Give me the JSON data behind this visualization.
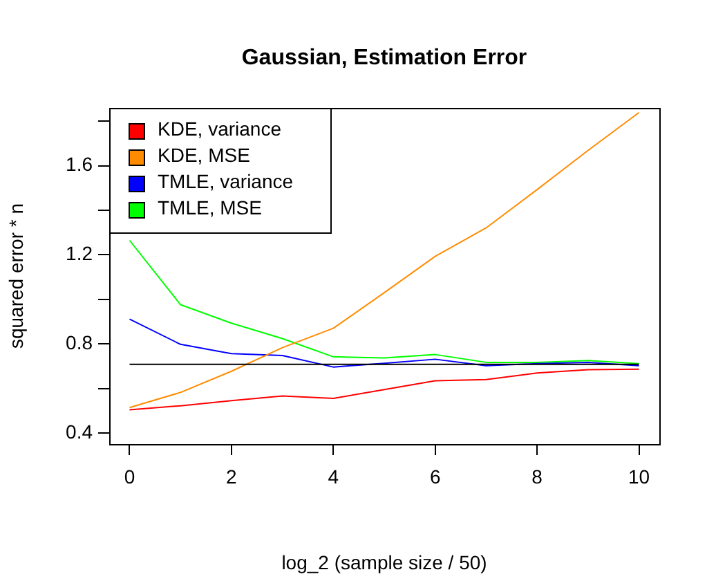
{
  "chart_data": {
    "type": "line",
    "title": "Gaussian, Estimation Error",
    "xlabel": "log_2 (sample size / 50)",
    "ylabel": "squared error * n",
    "x": [
      0,
      1,
      2,
      3,
      4,
      5,
      6,
      7,
      8,
      9,
      10
    ],
    "series": [
      {
        "name": "KDE, variance",
        "color": "#ff0000",
        "values": [
          0.504,
          0.522,
          0.545,
          0.566,
          0.555,
          0.595,
          0.634,
          0.64,
          0.669,
          0.684,
          0.686
        ]
      },
      {
        "name": "KDE, MSE",
        "color": "#ff8c00",
        "values": [
          0.514,
          0.582,
          0.677,
          0.783,
          0.87,
          1.03,
          1.193,
          1.321,
          1.493,
          1.669,
          1.839
        ]
      },
      {
        "name": "TMLE, variance",
        "color": "#0000ff",
        "values": [
          0.911,
          0.798,
          0.756,
          0.748,
          0.696,
          0.713,
          0.731,
          0.702,
          0.711,
          0.717,
          0.702
        ]
      },
      {
        "name": "TMLE, MSE",
        "color": "#00ff00",
        "values": [
          1.265,
          0.976,
          0.893,
          0.824,
          0.742,
          0.737,
          0.752,
          0.717,
          0.717,
          0.725,
          0.711
        ]
      }
    ],
    "ref_lines": [
      {
        "axis": "y",
        "value": 0.708,
        "color": "#000000"
      }
    ],
    "xlim": [
      -0.4,
      10.4
    ],
    "xticks": [
      0,
      2,
      4,
      6,
      8,
      10
    ],
    "ylim": [
      0.35,
      1.86
    ],
    "yticks": [
      0.4,
      {
        "value": 0.6,
        "label": null
      },
      0.8,
      {
        "value": 1.0,
        "label": null
      },
      1.2,
      {
        "value": 1.4,
        "label": null
      },
      1.6,
      {
        "value": 1.8,
        "label": null
      }
    ],
    "grid": false,
    "legend": "top left",
    "marker": "none",
    "line_style": "solid"
  }
}
